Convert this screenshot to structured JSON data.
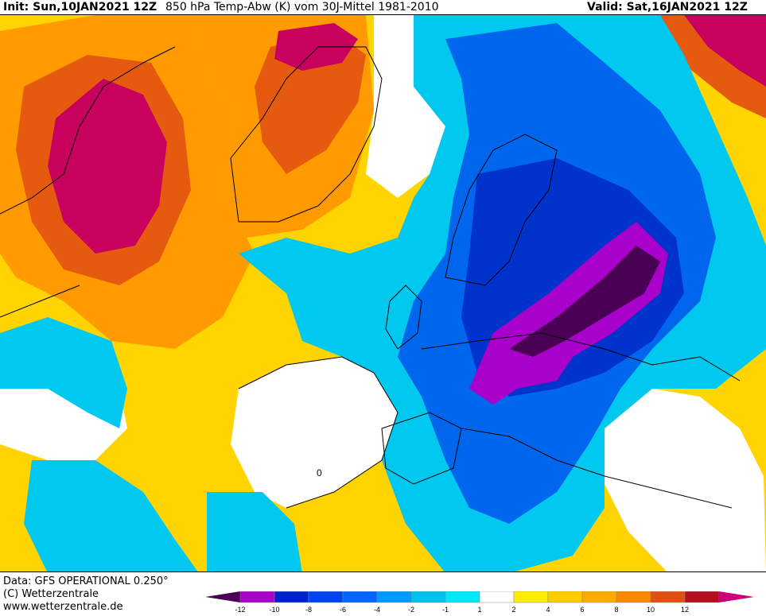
{
  "header": {
    "init": "Init: Sun,10JAN2021 12Z",
    "parameter": "850 hPa Temp-Abw (K) vom 30J-Mittel 1981-2010",
    "valid": "Valid: Sat,16JAN2021 12Z"
  },
  "map": {
    "contour_label": "0",
    "region": "North Atlantic and Europe",
    "colors": {
      "strong_warm": "#cc0077",
      "warm": "#e85a10",
      "mild_warm": "#ffcc00",
      "neutral": "#ffffff",
      "mild_cold": "#00ccee",
      "cold": "#0055ee",
      "strong_cold": "#aa00cc"
    }
  },
  "footer": {
    "data_source": "Data: GFS OPERATIONAL 0.250°",
    "copyright": "(C) Wetterzentrale",
    "url": "www.wetterzentrale.de"
  },
  "legend": {
    "tick_labels": [
      "-12",
      "-10",
      "-8",
      "-6",
      "-4",
      "-2",
      "-1",
      "1",
      "2",
      "4",
      "6",
      "8",
      "10",
      "12"
    ],
    "colors": [
      "#4a0055",
      "#aa00cc",
      "#0022cc",
      "#0044ee",
      "#0066ff",
      "#0099ff",
      "#00c0f0",
      "#00e8f8",
      "#ffffff",
      "#ffee00",
      "#ffcc00",
      "#ffaa00",
      "#ff8800",
      "#e05010",
      "#b01020",
      "#cc0077"
    ]
  }
}
